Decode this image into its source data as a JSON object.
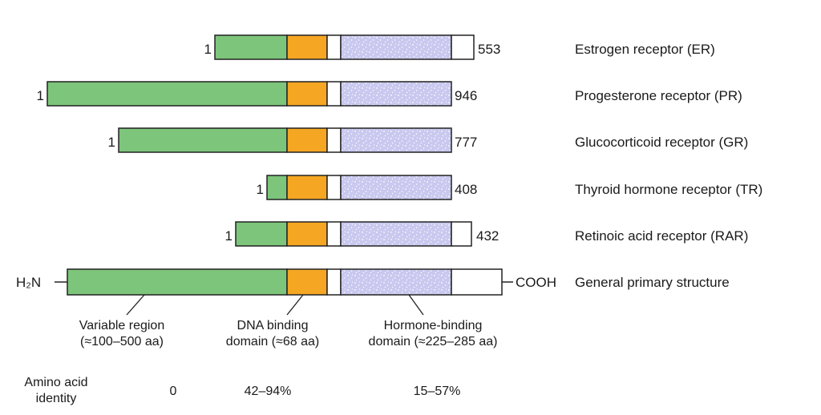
{
  "colors": {
    "variable": "#7dc57a",
    "dna": "#f5a623",
    "hinge": "#ffffff",
    "hormone": "#c9c8ef",
    "tail": "#ffffff",
    "outline": "#222222"
  },
  "receptors": [
    {
      "name": "Estrogen receptor (ER)",
      "start_label": "1",
      "end_label": "553"
    },
    {
      "name": "Progesterone receptor (PR)",
      "start_label": "1",
      "end_label": "946"
    },
    {
      "name": "Glucocorticoid receptor (GR)",
      "start_label": "1",
      "end_label": "777"
    },
    {
      "name": "Thyroid hormone receptor (TR)",
      "start_label": "1",
      "end_label": "408"
    },
    {
      "name": "Retinoic acid receptor (RAR)",
      "start_label": "1",
      "end_label": "432"
    }
  ],
  "general": {
    "n_term": "H₂N",
    "c_term": "COOH",
    "name": "General primary structure"
  },
  "domains": [
    {
      "line1": "Variable region",
      "line2": "(≈100–500 aa)"
    },
    {
      "line1": "DNA binding",
      "line2": "domain (≈68 aa)"
    },
    {
      "line1": "Hormone-binding",
      "line2": "domain (≈225–285 aa)"
    }
  ],
  "identity": {
    "label_line1": "Amino acid",
    "label_line2": "identity",
    "variable": "0",
    "dna": "42–94%",
    "hormone": "15–57%"
  }
}
